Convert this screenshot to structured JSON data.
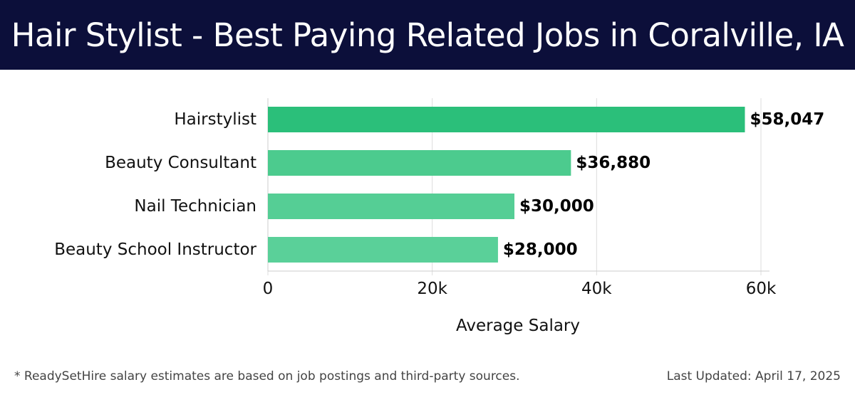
{
  "header": {
    "title": "Hair Stylist - Best Paying Related Jobs in Coralville, IA"
  },
  "chart_data": {
    "type": "bar",
    "orientation": "horizontal",
    "title": "Hair Stylist - Best Paying Related Jobs in Coralville, IA",
    "categories": [
      "Hairstylist",
      "Beauty Consultant",
      "Nail Technician",
      "Beauty School Instructor"
    ],
    "values": [
      58047,
      36880,
      30000,
      28000
    ],
    "value_labels": [
      "$58,047",
      "$36,880",
      "$30,000",
      "$28,000"
    ],
    "xlabel": "Average Salary",
    "ylabel": "",
    "xlim": [
      0,
      60000
    ],
    "ticks": [
      0,
      20000,
      40000,
      60000
    ],
    "tick_labels": [
      "0",
      "20k",
      "40k",
      "60k"
    ],
    "grid": true,
    "colors": [
      "#2bbf7a",
      "#4ccb8e",
      "#55ce95",
      "#5ad099"
    ]
  },
  "footer": {
    "note": "* ReadySetHire salary estimates are based on job postings and third-party sources.",
    "updated": "Last Updated: April 17, 2025"
  }
}
